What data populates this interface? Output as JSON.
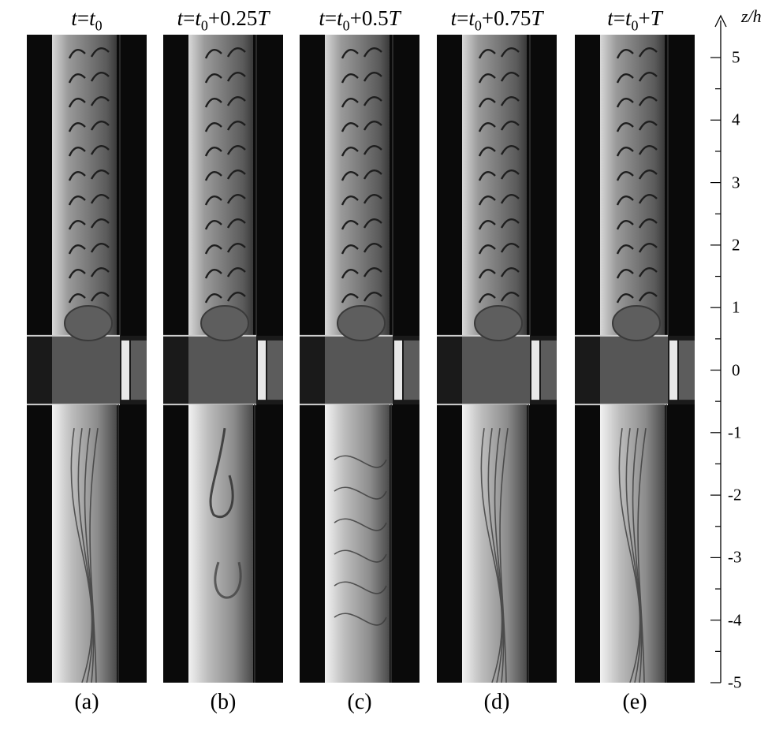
{
  "panels": [
    {
      "time": {
        "t": "t",
        "eq": "=",
        "base": "t",
        "sub": "0",
        "offset": "",
        "T": ""
      },
      "caption": "(a)",
      "state": "a"
    },
    {
      "time": {
        "t": "t",
        "eq": "=",
        "base": "t",
        "sub": "0",
        "offset": "+0.25",
        "T": "T"
      },
      "caption": "(b)",
      "state": "b"
    },
    {
      "time": {
        "t": "t",
        "eq": "=",
        "base": "t",
        "sub": "0",
        "offset": "+0.5",
        "T": "T"
      },
      "caption": "(c)",
      "state": "c"
    },
    {
      "time": {
        "t": "t",
        "eq": "=",
        "base": "t",
        "sub": "0",
        "offset": "+0.75",
        "T": "T"
      },
      "caption": "(d)",
      "state": "d"
    },
    {
      "time": {
        "t": "t",
        "eq": "=",
        "base": "t",
        "sub": "0",
        "offset": "+",
        "T": "T"
      },
      "caption": "(e)",
      "state": "e"
    }
  ],
  "axis": {
    "title": "z/h",
    "range": [
      -5,
      5
    ],
    "major_ticks": [
      "5",
      "4",
      "3",
      "2",
      "1",
      "0",
      "-1",
      "-2",
      "-3",
      "-4",
      "-5"
    ]
  }
}
